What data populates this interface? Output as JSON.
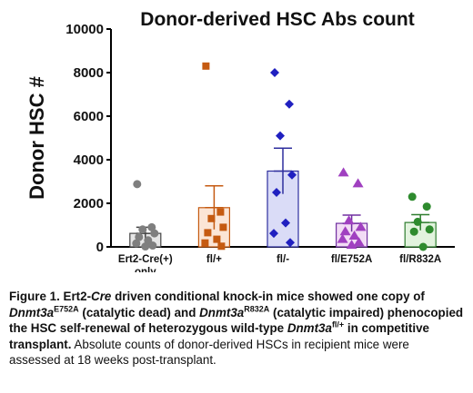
{
  "chart_data": {
    "type": "bar",
    "title": "Donor-derived HSC Abs count",
    "ylabel": "Donor HSC #",
    "ylim": [
      0,
      10000
    ],
    "yticks": [
      "0",
      "2000",
      "4000",
      "6000",
      "8000",
      "10000"
    ],
    "categories": [
      {
        "line1": "Ert2-Cre(+)",
        "line2": "only"
      },
      {
        "line1": "fl/+",
        "line2": ""
      },
      {
        "line1": "fl/-",
        "line2": ""
      },
      {
        "line1": "fl/E752A",
        "line2": ""
      },
      {
        "line1": "fl/R832A",
        "line2": ""
      }
    ],
    "series": [
      {
        "value": 620,
        "error": 280,
        "fill": "#e6e6e6",
        "stroke": "#444444",
        "marker": "circle",
        "marker_color": "#7f7f7f",
        "points": [
          2880,
          900,
          800,
          620,
          450,
          300,
          160,
          60,
          20
        ]
      },
      {
        "value": 1800,
        "error": 1000,
        "fill": "#fbe5d6",
        "stroke": "#c55a11",
        "marker": "square",
        "marker_color": "#c55a11",
        "points": [
          8300,
          1600,
          1300,
          900,
          650,
          350,
          180,
          30
        ]
      },
      {
        "value": 3480,
        "error": 1050,
        "fill": "#dadcf7",
        "stroke": "#2e2e9e",
        "marker": "diamond",
        "marker_color": "#2020c0",
        "points": [
          8000,
          6550,
          5100,
          3300,
          2500,
          1100,
          620,
          200
        ]
      },
      {
        "value": 1080,
        "error": 380,
        "fill": "#f2dcf5",
        "stroke": "#7030a0",
        "marker": "triangle",
        "marker_color": "#a040c0",
        "points": [
          3400,
          2900,
          1200,
          900,
          700,
          500,
          350,
          200,
          80
        ]
      },
      {
        "value": 1120,
        "error": 360,
        "fill": "#e2f3de",
        "stroke": "#2f7d2f",
        "marker": "circle",
        "marker_color": "#2e8b2e",
        "points": [
          2300,
          1850,
          1150,
          800,
          700,
          0
        ]
      }
    ]
  },
  "caption": {
    "p1": "Figure 1. Ert2-",
    "p2": "Cre",
    "p3": " driven conditional knock-in mice showed one copy of ",
    "p4": "Dnmt3a",
    "p5": "E752A",
    "p6": " (catalytic dead) and ",
    "p7": "Dnmt3a",
    "p8": "R832A",
    "p9": " (catalytic impaired) phenocopied the HSC self-renewal of heterozygous wild-type ",
    "p10": "Dnmt3a",
    "p11": "fl/+",
    "p12": " in competitive transplant.",
    "p13": " Absolute counts of donor-derived HSCs in recipient mice were assessed at 18 weeks post-transplant."
  }
}
